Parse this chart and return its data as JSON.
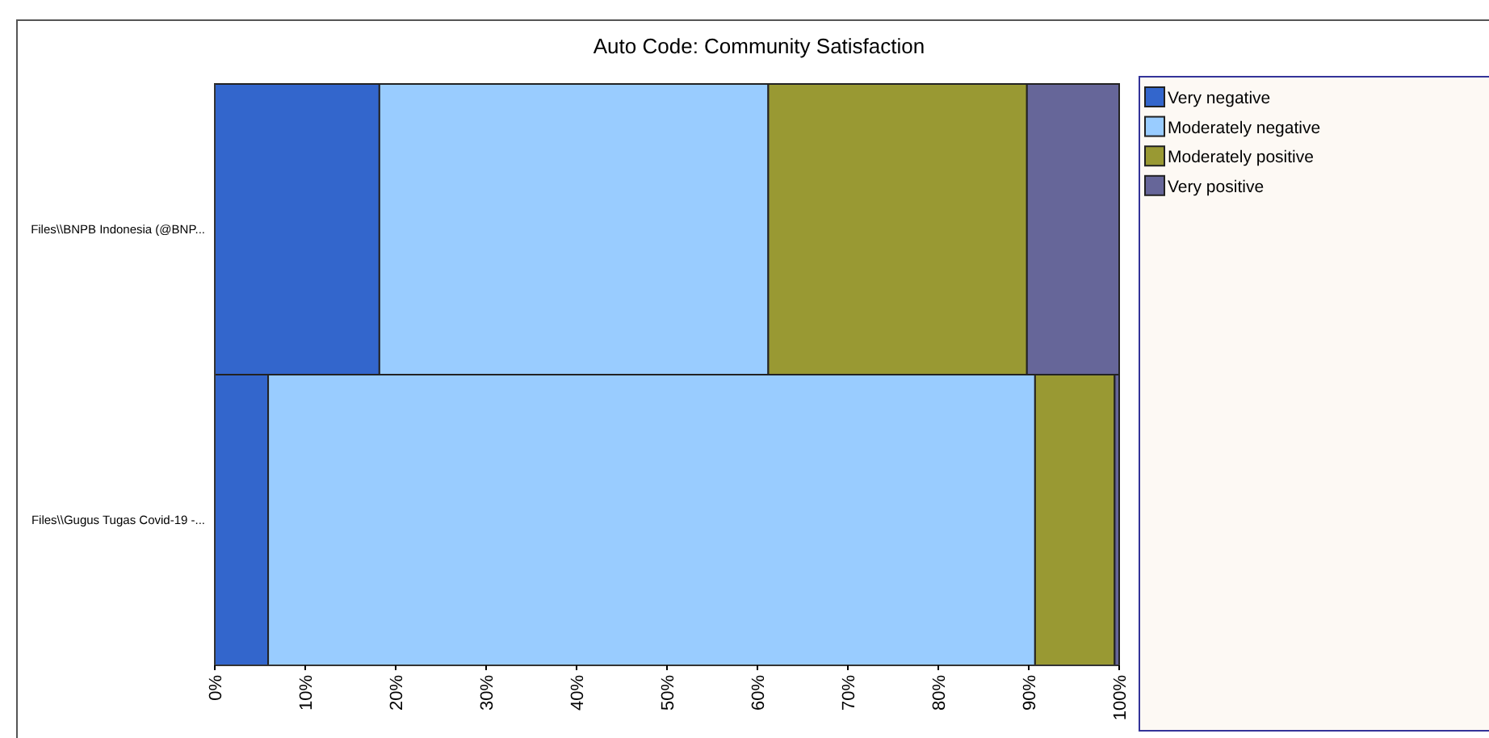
{
  "chart_data": {
    "type": "bar",
    "title": "Auto Code: Community Satisfaction",
    "orientation": "horizontal",
    "stacked": true,
    "categories": [
      "Files\\\\BNPB Indonesia (@BNP...",
      "Files\\\\Gugus Tugas Covid-19 -..."
    ],
    "series": [
      {
        "name": "Very negative",
        "color": "#3366cc",
        "values": [
          18.2,
          5.9
        ]
      },
      {
        "name": "Moderately negative",
        "color": "#99ccff",
        "values": [
          43,
          84.8
        ]
      },
      {
        "name": "Moderately positive",
        "color": "#999933",
        "values": [
          28.6,
          8.8
        ]
      },
      {
        "name": "Very positive",
        "color": "#666699",
        "values": [
          10.2,
          0.5
        ]
      }
    ],
    "xlim": [
      0,
      100
    ],
    "xticks": [
      {
        "value": 0,
        "label": "0%"
      },
      {
        "value": 10,
        "label": "10%"
      },
      {
        "value": 20,
        "label": "20%"
      },
      {
        "value": 30,
        "label": "30%"
      },
      {
        "value": 40,
        "label": "40%"
      },
      {
        "value": 50,
        "label": "50%"
      },
      {
        "value": 60,
        "label": "60%"
      },
      {
        "value": 70,
        "label": "70%"
      },
      {
        "value": 80,
        "label": "80%"
      },
      {
        "value": 90,
        "label": "90%"
      },
      {
        "value": 100,
        "label": "100%"
      }
    ],
    "legend": "right"
  }
}
